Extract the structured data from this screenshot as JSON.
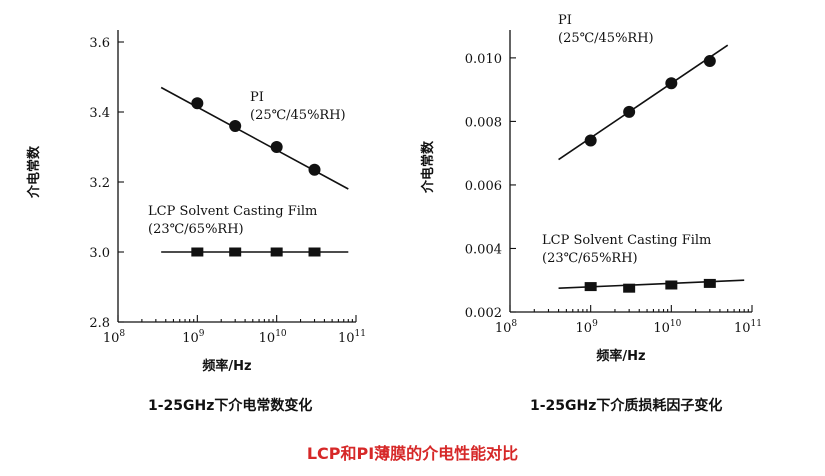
{
  "caption": "LCP和PI薄膜的介电性能对比",
  "chart_data": [
    {
      "type": "scatter",
      "title": "1-25GHz下介电常数变化",
      "xlabel": "频率/Hz",
      "ylabel": "介电常数",
      "xscale": "log",
      "xlim": [
        100000000.0,
        100000000000.0
      ],
      "ylim": [
        2.8,
        3.6
      ],
      "x_ticks": [
        {
          "value": 100000000.0,
          "base": "10",
          "exp": "8"
        },
        {
          "value": 1000000000.0,
          "base": "10",
          "exp": "9"
        },
        {
          "value": 10000000000.0,
          "base": "10",
          "exp": "10"
        },
        {
          "value": 100000000000.0,
          "base": "10",
          "exp": "11"
        }
      ],
      "y_ticks": [
        "2.8",
        "3.0",
        "3.2",
        "3.4",
        "3.6"
      ],
      "series": [
        {
          "name": "PI",
          "note": "(25℃/45%RH)",
          "marker": "circle",
          "x": [
            1000000000.0,
            3000000000.0,
            10000000000.0,
            30000000000.0
          ],
          "y": [
            3.425,
            3.36,
            3.3,
            3.235
          ],
          "fit_x": [
            350000000.0,
            80000000000.0
          ],
          "fit_y": [
            3.47,
            3.18
          ]
        },
        {
          "name": "LCP Solvent Casting Film",
          "note": "(23℃/65%RH)",
          "marker": "square",
          "x": [
            1000000000.0,
            3000000000.0,
            10000000000.0,
            30000000000.0
          ],
          "y": [
            3.0,
            3.0,
            3.0,
            3.0
          ],
          "fit_x": [
            350000000.0,
            80000000000.0
          ],
          "fit_y": [
            3.0,
            3.0
          ]
        }
      ]
    },
    {
      "type": "scatter",
      "title": "1-25GHz下介质损耗因子变化",
      "xlabel": "频率/Hz",
      "ylabel": "介电常数",
      "xscale": "log",
      "xlim": [
        100000000.0,
        100000000000.0
      ],
      "ylim": [
        0.002,
        0.0105
      ],
      "x_ticks": [
        {
          "value": 100000000.0,
          "base": "10",
          "exp": "8"
        },
        {
          "value": 1000000000.0,
          "base": "10",
          "exp": "9"
        },
        {
          "value": 10000000000.0,
          "base": "10",
          "exp": "10"
        },
        {
          "value": 100000000000.0,
          "base": "10",
          "exp": "11"
        }
      ],
      "y_ticks": [
        "0.002",
        "0.004",
        "0.006",
        "0.008",
        "0.010"
      ],
      "series": [
        {
          "name": "PI",
          "note": "(25℃/45%RH)",
          "marker": "circle",
          "x": [
            1000000000.0,
            3000000000.0,
            10000000000.0,
            30000000000.0
          ],
          "y": [
            0.0074,
            0.0083,
            0.0092,
            0.0099
          ],
          "fit_x": [
            400000000.0,
            50000000000.0
          ],
          "fit_y": [
            0.0068,
            0.0104
          ]
        },
        {
          "name": "LCP Solvent Casting Film",
          "note": "(23℃/65%RH)",
          "marker": "square",
          "x": [
            1000000000.0,
            3000000000.0,
            10000000000.0,
            30000000000.0
          ],
          "y": [
            0.0028,
            0.00275,
            0.00285,
            0.0029
          ],
          "fit_x": [
            400000000.0,
            80000000000.0
          ],
          "fit_y": [
            0.00275,
            0.003
          ]
        }
      ]
    }
  ]
}
